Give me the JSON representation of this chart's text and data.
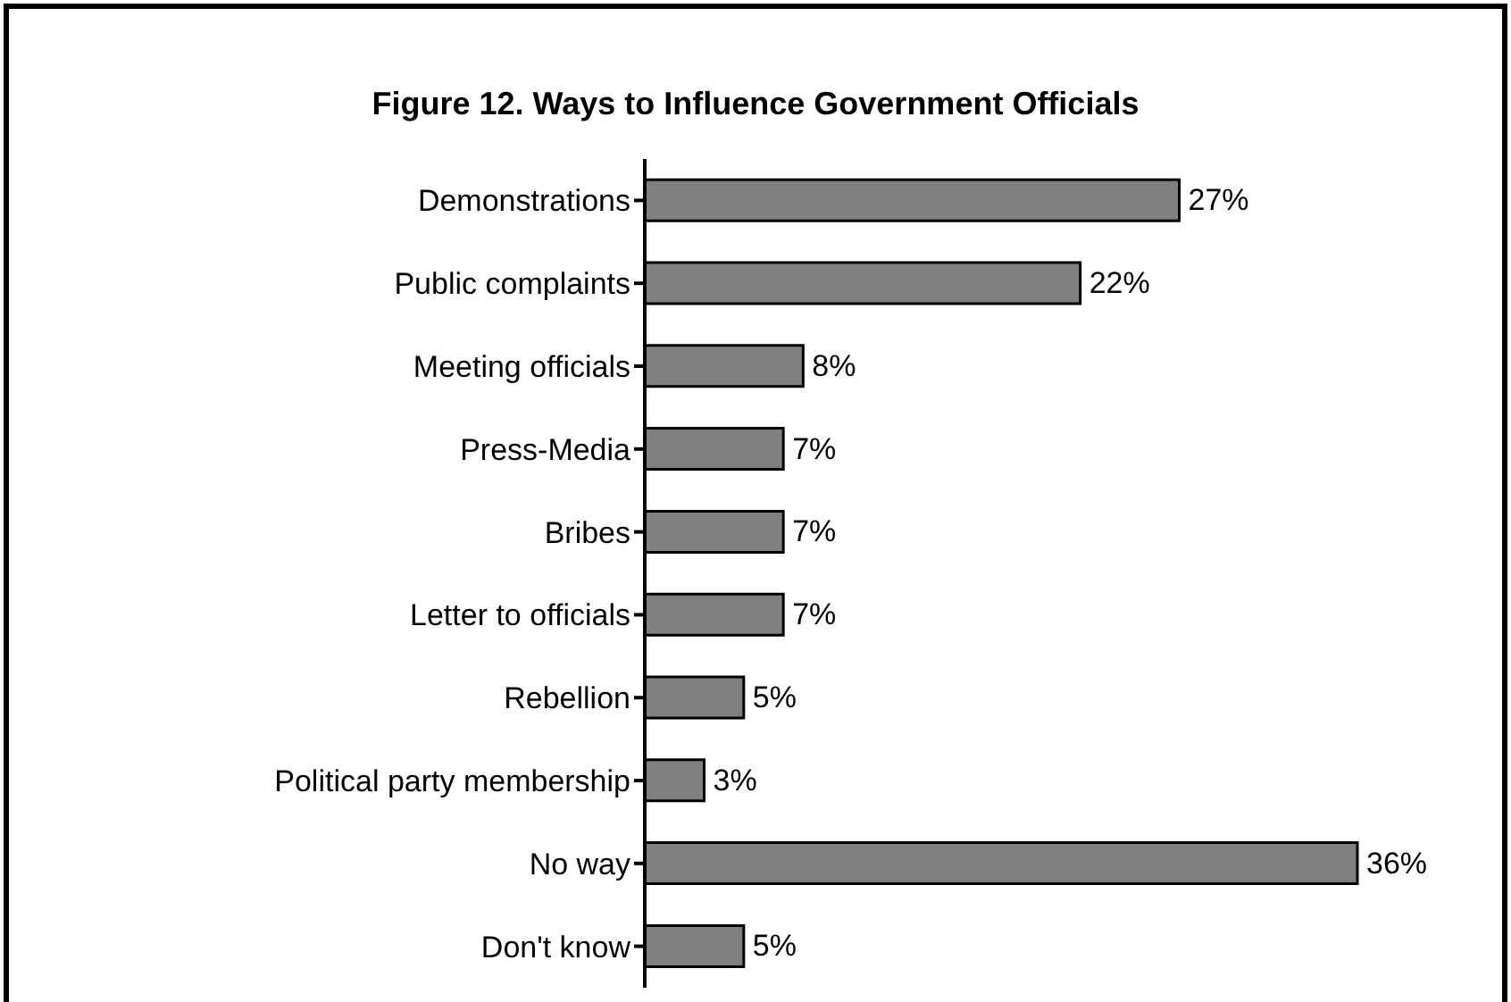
{
  "chart_data": {
    "type": "bar",
    "orientation": "horizontal",
    "title": "Figure 12. Ways to Influence Government Officials",
    "categories": [
      "Demonstrations",
      "Public complaints",
      "Meeting officials",
      "Press-Media",
      "Bribes",
      "Letter to officials",
      "Rebellion",
      "Political party membership",
      "No way",
      "Don't know"
    ],
    "values": [
      27,
      22,
      8,
      7,
      7,
      7,
      5,
      3,
      36,
      5
    ],
    "value_labels": [
      "27%",
      "22%",
      "8%",
      "7%",
      "7%",
      "7%",
      "5%",
      "3%",
      "36%",
      "5%"
    ],
    "color": "#808080",
    "tick_labels": "y"
  }
}
